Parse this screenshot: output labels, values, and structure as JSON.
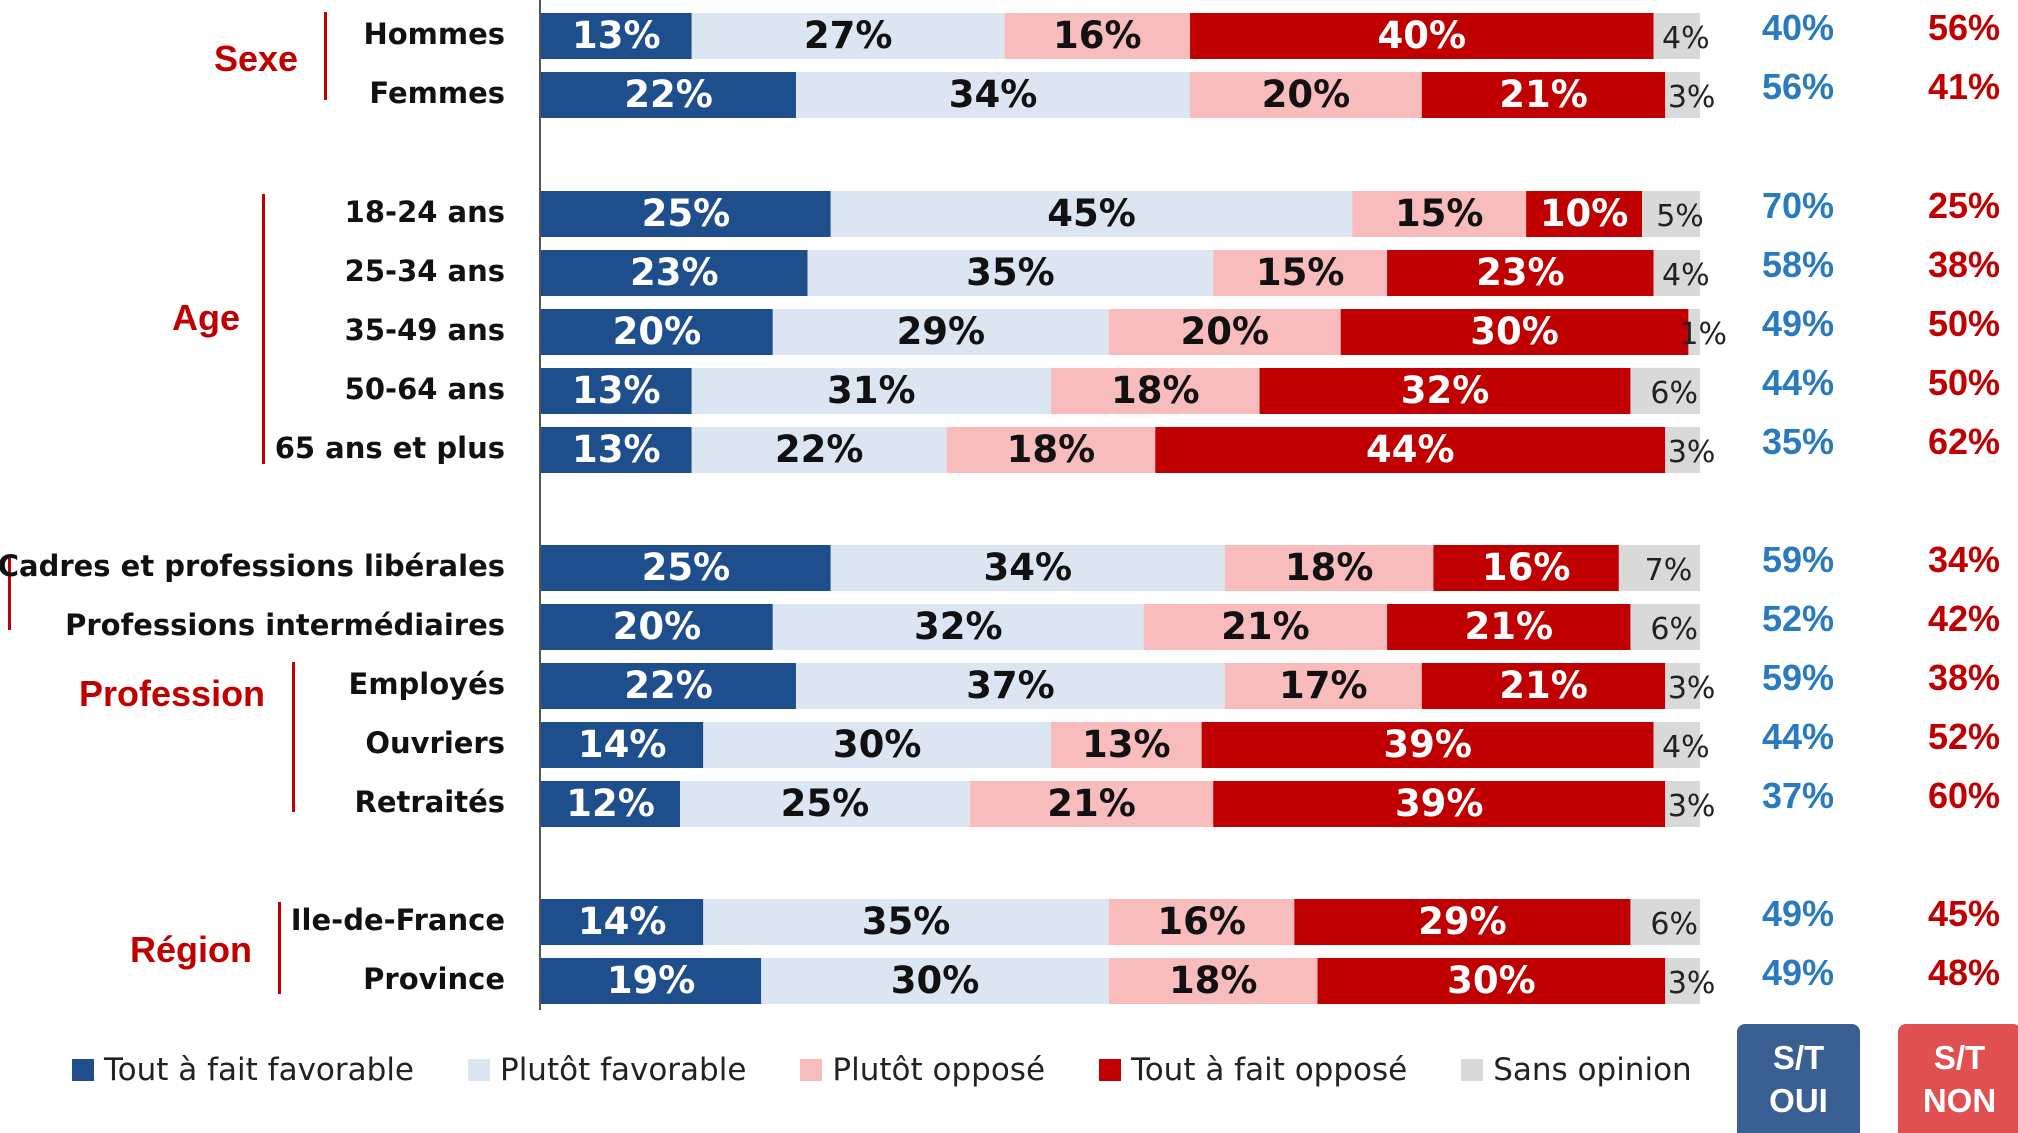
{
  "legend": {
    "tout_fav": "Tout à fait favorable",
    "plutot_fav": "Plutôt favorable",
    "plutot_opp": "Plutôt opposé",
    "tout_opp": "Tout à fait opposé",
    "sans_op": "Sans opinion"
  },
  "groups": {
    "sexe": "Sexe",
    "age": "Age",
    "profession": "Profession",
    "region": "Région"
  },
  "summary": {
    "oui_line1": "S/T",
    "oui_line2": "OUI",
    "non_line1": "S/T",
    "non_line2": "NON"
  },
  "colors": {
    "tout_fav": "#1f4e8c",
    "plutot_fav": "#dce6f2",
    "plutot_opp": "#f8bcbc",
    "tout_opp": "#c00000",
    "sans_op": "#d9d9d9",
    "oui_text": "#2a7ac0",
    "non_text": "#c00000",
    "oui_box": "#3a5f93",
    "non_box": "#e05050"
  },
  "chart_data": {
    "type": "bar",
    "orientation": "horizontal-stacked-100",
    "series_names": [
      "Tout à fait favorable",
      "Plutôt favorable",
      "Plutôt opposé",
      "Tout à fait opposé",
      "Sans opinion"
    ],
    "rows": [
      {
        "label": "Hommes",
        "group": "Sexe",
        "values": [
          13,
          27,
          16,
          40,
          4
        ],
        "labels": [
          "13%",
          "27%",
          "16%",
          "40%",
          "4%"
        ],
        "st_oui": "40%",
        "st_non": "56%"
      },
      {
        "label": "Femmes",
        "group": "Sexe",
        "values": [
          22,
          34,
          20,
          21,
          3
        ],
        "labels": [
          "22%",
          "34%",
          "20%",
          "21%",
          "3%"
        ],
        "st_oui": "56%",
        "st_non": "41%"
      },
      {
        "label": "18-24 ans",
        "group": "Age",
        "values": [
          25,
          45,
          15,
          10,
          5
        ],
        "labels": [
          "25%",
          "45%",
          "15%",
          "10%",
          "5%"
        ],
        "st_oui": "70%",
        "st_non": "25%"
      },
      {
        "label": "25-34 ans",
        "group": "Age",
        "values": [
          23,
          35,
          15,
          23,
          4
        ],
        "labels": [
          "23%",
          "35%",
          "15%",
          "23%",
          "4%"
        ],
        "st_oui": "58%",
        "st_non": "38%"
      },
      {
        "label": "35-49 ans",
        "group": "Age",
        "values": [
          20,
          29,
          20,
          30,
          1
        ],
        "labels": [
          "20%",
          "29%",
          "20%",
          "30%",
          "1%"
        ],
        "st_oui": "49%",
        "st_non": "50%"
      },
      {
        "label": "50-64 ans",
        "group": "Age",
        "values": [
          13,
          31,
          18,
          32,
          6
        ],
        "labels": [
          "13%",
          "31%",
          "18%",
          "32%",
          "6%"
        ],
        "st_oui": "44%",
        "st_non": "50%"
      },
      {
        "label": "65 ans et plus",
        "group": "Age",
        "values": [
          13,
          22,
          18,
          44,
          3
        ],
        "labels": [
          "13%",
          "22%",
          "18%",
          "44%",
          "3%"
        ],
        "st_oui": "35%",
        "st_non": "62%"
      },
      {
        "label": "Cadres et professions libérales",
        "group": "Profession",
        "values": [
          25,
          34,
          18,
          16,
          7
        ],
        "labels": [
          "25%",
          "34%",
          "18%",
          "16%",
          "7%"
        ],
        "st_oui": "59%",
        "st_non": "34%"
      },
      {
        "label": "Professions intermédiaires",
        "group": "Profession",
        "values": [
          20,
          32,
          21,
          21,
          6
        ],
        "labels": [
          "20%",
          "32%",
          "21%",
          "21%",
          "6%"
        ],
        "st_oui": "52%",
        "st_non": "42%"
      },
      {
        "label": "Employés",
        "group": "Profession",
        "values": [
          22,
          37,
          17,
          21,
          3
        ],
        "labels": [
          "22%",
          "37%",
          "17%",
          "21%",
          "3%"
        ],
        "st_oui": "59%",
        "st_non": "38%"
      },
      {
        "label": "Ouvriers",
        "group": "Profession",
        "values": [
          14,
          30,
          13,
          39,
          4
        ],
        "labels": [
          "14%",
          "30%",
          "13%",
          "39%",
          "4%"
        ],
        "st_oui": "44%",
        "st_non": "52%"
      },
      {
        "label": "Retraités",
        "group": "Profession",
        "values": [
          12,
          25,
          21,
          39,
          3
        ],
        "labels": [
          "12%",
          "25%",
          "21%",
          "39%",
          "3%"
        ],
        "st_oui": "37%",
        "st_non": "60%"
      },
      {
        "label": "Ile-de-France",
        "group": "Région",
        "values": [
          14,
          35,
          16,
          29,
          6
        ],
        "labels": [
          "14%",
          "35%",
          "16%",
          "29%",
          "6%"
        ],
        "st_oui": "49%",
        "st_non": "45%"
      },
      {
        "label": "Province",
        "group": "Région",
        "values": [
          19,
          30,
          18,
          30,
          3
        ],
        "labels": [
          "19%",
          "30%",
          "18%",
          "30%",
          "3%"
        ],
        "st_oui": "49%",
        "st_non": "48%"
      }
    ]
  }
}
